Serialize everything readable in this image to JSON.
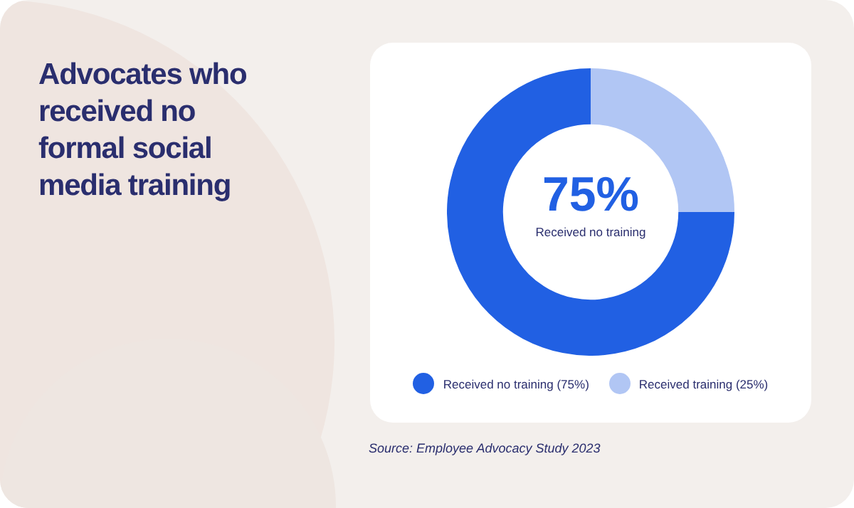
{
  "chart_data": {
    "type": "donut",
    "title": "Advocates who received no formal social media training",
    "categories": [
      "Received no training (75%)",
      "Received training (25%)"
    ],
    "values": [
      75,
      25
    ],
    "colors": [
      "#2160e3",
      "#b1c6f4"
    ],
    "legend": "bottom",
    "annotations": [
      "75%",
      "Received no training",
      "Source: Employee Advocacy Study 2023"
    ]
  }
}
